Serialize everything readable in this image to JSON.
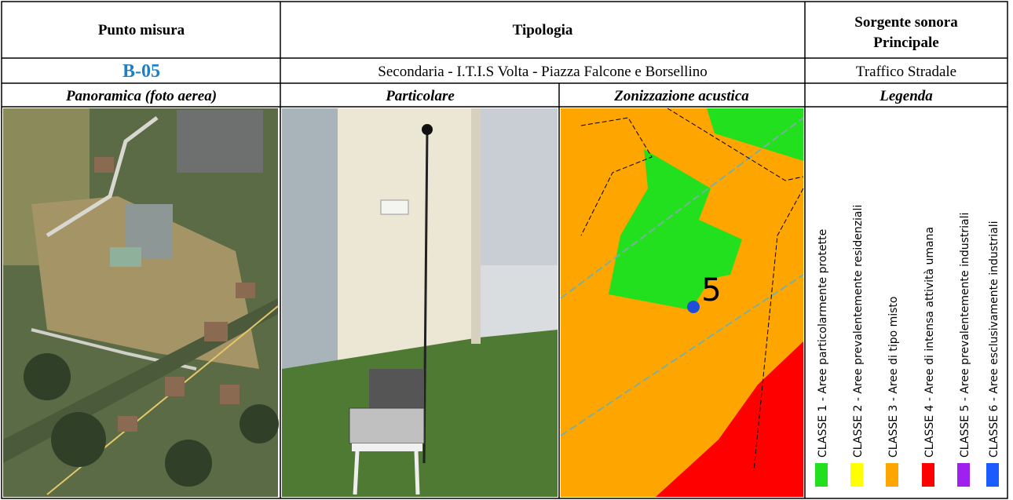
{
  "header": {
    "col1": "Punto misura",
    "col2": "Tipologia",
    "col3": "Sorgente sonora Principale"
  },
  "row": {
    "id": "B-05",
    "tipologia": "Secondaria -  I.T.I.S Volta - Piazza Falcone e Borsellino",
    "sorgente": "Traffico Stradale"
  },
  "subheader": {
    "col1": "Panoramica (foto aerea)",
    "col2": "Particolare",
    "col3": "Zonizzazione acustica",
    "col4": "Legenda"
  },
  "map": {
    "point_label": "5"
  },
  "legend": {
    "items": [
      {
        "label": "CLASSE 1 - Aree particolarmente protette",
        "color": "#22e01e"
      },
      {
        "label": "CLASSE 2 - Aree prevalentemente residenziali",
        "color": "#ffff00"
      },
      {
        "label": "CLASSE 3 - Aree di tipo misto",
        "color": "#ffa500"
      },
      {
        "label": "CLASSE 4 - Aree  di intensa attività umana",
        "color": "#ff0000"
      },
      {
        "label": "CLASSE 5 - Aree prevalentemente industriali",
        "color": "#a020f0"
      },
      {
        "label": "CLASSE 6 - Aree esclusivamente industriali",
        "color": "#1a5cff"
      }
    ]
  }
}
